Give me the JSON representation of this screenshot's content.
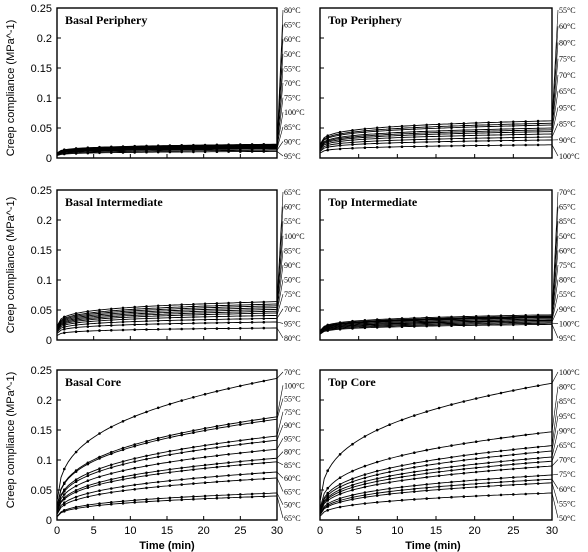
{
  "figure": {
    "ylabel": "Creep compliance  (MPa^-1)",
    "xlabel": "Time  (min)"
  },
  "chart_data": [
    {
      "type": "line",
      "title": "Basal Periphery",
      "xlim": [
        0,
        30
      ],
      "ylim": [
        0,
        0.25
      ],
      "yticks": [
        "0",
        "0.05",
        "0.1",
        "0.15",
        "0.2",
        "0.25"
      ],
      "xticks": [],
      "series": [
        {
          "name": "80°C",
          "final": 0.023,
          "a": 0.15
        },
        {
          "name": "65°C",
          "final": 0.022,
          "a": 0.15
        },
        {
          "name": "60°C",
          "final": 0.021,
          "a": 0.15
        },
        {
          "name": "50°C",
          "final": 0.02,
          "a": 0.15
        },
        {
          "name": "55°C",
          "final": 0.019,
          "a": 0.15
        },
        {
          "name": "70°C",
          "final": 0.018,
          "a": 0.15
        },
        {
          "name": "75°C",
          "final": 0.017,
          "a": 0.15
        },
        {
          "name": "100°C",
          "final": 0.016,
          "a": 0.15
        },
        {
          "name": "85°C",
          "final": 0.015,
          "a": 0.15
        },
        {
          "name": "90°C",
          "final": 0.013,
          "a": 0.15
        },
        {
          "name": "95°C",
          "final": 0.011,
          "a": 0.15
        }
      ]
    },
    {
      "type": "line",
      "title": "Top Periphery",
      "xlim": [
        0,
        30
      ],
      "ylim": [
        0,
        0.25
      ],
      "yticks": [],
      "xticks": [],
      "series": [
        {
          "name": "55°C",
          "final": 0.062,
          "a": 0.15
        },
        {
          "name": "60°C",
          "final": 0.058,
          "a": 0.15
        },
        {
          "name": "80°C",
          "final": 0.055,
          "a": 0.15
        },
        {
          "name": "75°C",
          "final": 0.05,
          "a": 0.15
        },
        {
          "name": "70°C",
          "final": 0.047,
          "a": 0.15
        },
        {
          "name": "65°C",
          "final": 0.044,
          "a": 0.15
        },
        {
          "name": "95°C",
          "final": 0.04,
          "a": 0.15
        },
        {
          "name": "85°C",
          "final": 0.035,
          "a": 0.15
        },
        {
          "name": "90°C",
          "final": 0.03,
          "a": 0.15
        },
        {
          "name": "100°C",
          "final": 0.022,
          "a": 0.15
        }
      ]
    },
    {
      "type": "line",
      "title": "Basal Intermediate",
      "xlim": [
        0,
        30
      ],
      "ylim": [
        0,
        0.25
      ],
      "yticks": [
        "0",
        "0.05",
        "0.1",
        "0.15",
        "0.2",
        "0.25"
      ],
      "xticks": [],
      "series": [
        {
          "name": "65°C",
          "final": 0.064,
          "a": 0.15
        },
        {
          "name": "60°C",
          "final": 0.06,
          "a": 0.15
        },
        {
          "name": "55°C",
          "final": 0.057,
          "a": 0.15
        },
        {
          "name": "100°C",
          "final": 0.054,
          "a": 0.15
        },
        {
          "name": "85°C",
          "final": 0.051,
          "a": 0.15
        },
        {
          "name": "90°C",
          "final": 0.048,
          "a": 0.15
        },
        {
          "name": "50°C",
          "final": 0.045,
          "a": 0.15
        },
        {
          "name": "75°C",
          "final": 0.041,
          "a": 0.15
        },
        {
          "name": "70°C",
          "final": 0.036,
          "a": 0.15
        },
        {
          "name": "95°C",
          "final": 0.03,
          "a": 0.15
        },
        {
          "name": "80°C",
          "final": 0.02,
          "a": 0.15
        }
      ]
    },
    {
      "type": "line",
      "title": "Top Intermediate",
      "xlim": [
        0,
        30
      ],
      "ylim": [
        0,
        0.25
      ],
      "yticks": [],
      "xticks": [],
      "series": [
        {
          "name": "70°C",
          "final": 0.042,
          "a": 0.15
        },
        {
          "name": "65°C",
          "final": 0.04,
          "a": 0.15
        },
        {
          "name": "85°C",
          "final": 0.039,
          "a": 0.15
        },
        {
          "name": "50°C",
          "final": 0.038,
          "a": 0.15
        },
        {
          "name": "60°C",
          "final": 0.037,
          "a": 0.15
        },
        {
          "name": "75°C",
          "final": 0.035,
          "a": 0.15
        },
        {
          "name": "80°C",
          "final": 0.033,
          "a": 0.15
        },
        {
          "name": "55°C",
          "final": 0.032,
          "a": 0.15
        },
        {
          "name": "90°C",
          "final": 0.03,
          "a": 0.15
        },
        {
          "name": "100°C",
          "final": 0.028,
          "a": 0.15
        },
        {
          "name": "95°C",
          "final": 0.026,
          "a": 0.15
        }
      ]
    },
    {
      "type": "line",
      "title": "Basal Core",
      "xlim": [
        0,
        30
      ],
      "ylim": [
        0,
        0.25
      ],
      "yticks": [
        "0",
        "0.05",
        "0.1",
        "0.15",
        "0.2",
        "0.25"
      ],
      "xticks": [
        "0",
        "5",
        "10",
        "15",
        "20",
        "25",
        "30"
      ],
      "series": [
        {
          "name": "70°C",
          "final": 0.236,
          "a": 0.3
        },
        {
          "name": "100°C",
          "final": 0.172,
          "a": 0.3
        },
        {
          "name": "55°C",
          "final": 0.168,
          "a": 0.3
        },
        {
          "name": "75°C",
          "final": 0.14,
          "a": 0.3
        },
        {
          "name": "90°C",
          "final": 0.133,
          "a": 0.3
        },
        {
          "name": "95°C",
          "final": 0.118,
          "a": 0.3
        },
        {
          "name": "80°C",
          "final": 0.103,
          "a": 0.3
        },
        {
          "name": "85°C",
          "final": 0.097,
          "a": 0.3
        },
        {
          "name": "60°C",
          "final": 0.08,
          "a": 0.3
        },
        {
          "name": "65°C",
          "final": 0.07,
          "a": 0.3
        },
        {
          "name": "50°C",
          "final": 0.045,
          "a": 0.3
        },
        {
          "name": "65°C",
          "final": 0.04,
          "a": 0.3
        }
      ]
    },
    {
      "type": "line",
      "title": "Top Core",
      "xlim": [
        0,
        30
      ],
      "ylim": [
        0,
        0.25
      ],
      "yticks": [],
      "xticks": [
        "0",
        "5",
        "10",
        "15",
        "20",
        "25",
        "30"
      ],
      "series": [
        {
          "name": "100°C",
          "final": 0.228,
          "a": 0.3
        },
        {
          "name": "80°C",
          "final": 0.147,
          "a": 0.3
        },
        {
          "name": "85°C",
          "final": 0.124,
          "a": 0.3
        },
        {
          "name": "95°C",
          "final": 0.115,
          "a": 0.3
        },
        {
          "name": "90°C",
          "final": 0.105,
          "a": 0.3
        },
        {
          "name": "65°C",
          "final": 0.098,
          "a": 0.3
        },
        {
          "name": "70°C",
          "final": 0.09,
          "a": 0.3
        },
        {
          "name": "75°C",
          "final": 0.075,
          "a": 0.3
        },
        {
          "name": "60°C",
          "final": 0.068,
          "a": 0.3
        },
        {
          "name": "55°C",
          "final": 0.062,
          "a": 0.3
        },
        {
          "name": "50°C",
          "final": 0.045,
          "a": 0.3
        }
      ]
    }
  ]
}
